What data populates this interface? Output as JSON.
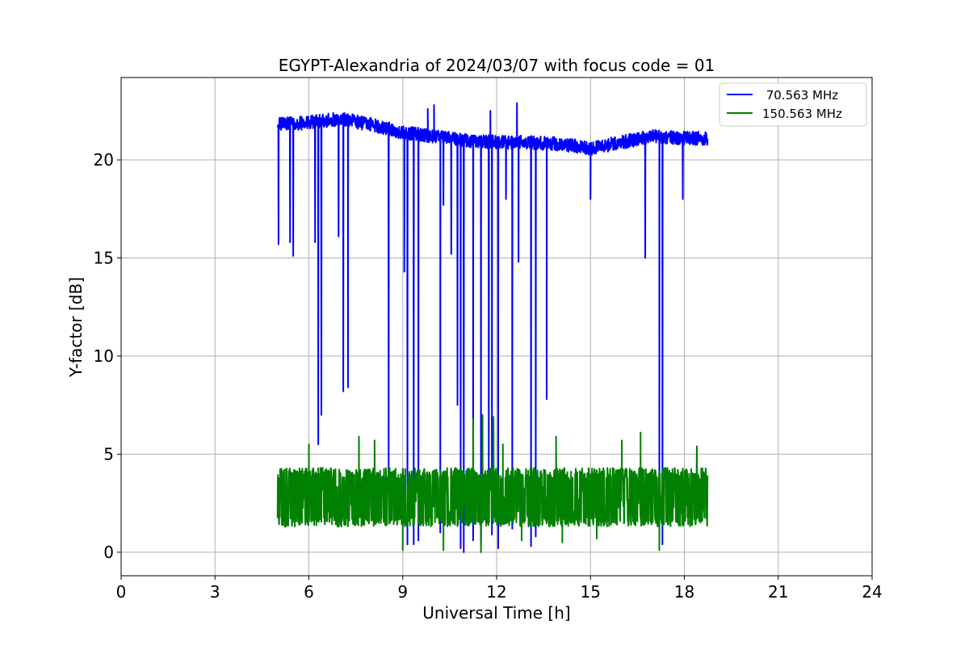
{
  "chart_data": {
    "type": "line",
    "title": "EGYPT-Alexandria of 2024/03/07 with focus code = 01",
    "xlabel": "Universal Time [h]",
    "ylabel": "Y-factor [dB]",
    "xlim": [
      0,
      24
    ],
    "ylim": [
      -1.2,
      24.2
    ],
    "xticks": [
      0,
      3,
      6,
      9,
      12,
      15,
      18,
      21,
      24
    ],
    "yticks": [
      0,
      5,
      10,
      15,
      20
    ],
    "grid": true,
    "legend": "top-right",
    "series": [
      {
        "name": " 70.563 MHz",
        "color": "#0000ff",
        "time_range": [
          5.0,
          18.75
        ],
        "baseline": [
          [
            5.0,
            21.8
          ],
          [
            6.0,
            21.9
          ],
          [
            7.0,
            22.1
          ],
          [
            8.0,
            21.8
          ],
          [
            9.0,
            21.4
          ],
          [
            10.0,
            21.2
          ],
          [
            11.0,
            21.0
          ],
          [
            12.0,
            20.9
          ],
          [
            13.0,
            20.9
          ],
          [
            14.0,
            20.8
          ],
          [
            15.0,
            20.6
          ],
          [
            16.0,
            20.9
          ],
          [
            17.0,
            21.2
          ],
          [
            18.0,
            21.1
          ],
          [
            18.75,
            21.1
          ]
        ],
        "noise": 0.35,
        "spikes_up": [
          [
            9.8,
            22.6
          ],
          [
            10.0,
            22.8
          ],
          [
            11.8,
            22.5
          ],
          [
            12.65,
            22.9
          ]
        ],
        "dips": [
          [
            5.03,
            15.7
          ],
          [
            5.4,
            15.8
          ],
          [
            5.5,
            15.1
          ],
          [
            6.2,
            15.8
          ],
          [
            6.3,
            5.5
          ],
          [
            6.4,
            7.0
          ],
          [
            6.95,
            16.1
          ],
          [
            7.1,
            8.2
          ],
          [
            7.25,
            8.4
          ],
          [
            8.55,
            4.0
          ],
          [
            9.05,
            14.3
          ],
          [
            9.15,
            0.4
          ],
          [
            9.35,
            0.4
          ],
          [
            9.5,
            0.6
          ],
          [
            10.2,
            1.0
          ],
          [
            10.3,
            17.7
          ],
          [
            10.55,
            15.2
          ],
          [
            10.75,
            7.5
          ],
          [
            10.85,
            0.2
          ],
          [
            10.95,
            0.0
          ],
          [
            11.25,
            0.6
          ],
          [
            11.5,
            0.5
          ],
          [
            11.75,
            3.4
          ],
          [
            11.85,
            0.9
          ],
          [
            12.05,
            0.2
          ],
          [
            12.3,
            18.0
          ],
          [
            12.5,
            1.2
          ],
          [
            12.7,
            14.8
          ],
          [
            13.1,
            0.3
          ],
          [
            13.25,
            0.8
          ],
          [
            13.6,
            7.8
          ],
          [
            15.0,
            18.0
          ],
          [
            16.75,
            15.0
          ],
          [
            17.2,
            0.6
          ],
          [
            17.3,
            0.4
          ],
          [
            17.95,
            18.0
          ]
        ]
      },
      {
        "name": "150.563 MHz",
        "color": "#008000",
        "time_range": [
          5.0,
          18.75
        ],
        "band": [
          1.3,
          4.3
        ],
        "mean": 3.1,
        "spikes_up": [
          [
            6.0,
            5.5
          ],
          [
            7.6,
            5.9
          ],
          [
            8.1,
            5.7
          ],
          [
            11.25,
            6.8
          ],
          [
            11.55,
            7.0
          ],
          [
            11.9,
            6.9
          ],
          [
            12.2,
            5.5
          ],
          [
            13.9,
            5.9
          ],
          [
            16.0,
            5.7
          ],
          [
            16.6,
            6.1
          ],
          [
            18.4,
            5.4
          ]
        ],
        "dips": [
          [
            9.0,
            0.1
          ],
          [
            10.3,
            0.1
          ],
          [
            11.5,
            0.0
          ],
          [
            12.8,
            0.6
          ],
          [
            14.1,
            0.5
          ],
          [
            15.2,
            0.7
          ],
          [
            17.2,
            0.1
          ],
          [
            18.8,
            0.9
          ]
        ]
      }
    ]
  }
}
